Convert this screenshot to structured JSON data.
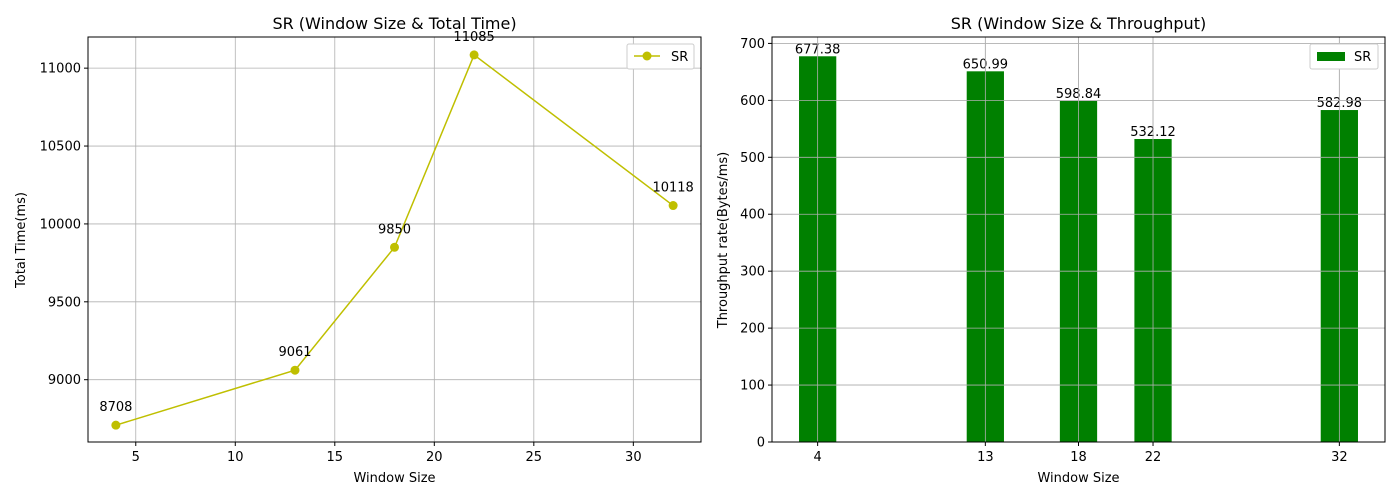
{
  "chart_data": [
    {
      "type": "line",
      "title": "SR (Window Size & Total Time)",
      "xlabel": "Window Size",
      "ylabel": "Total Time(ms)",
      "xlim": [
        2.6,
        33.4
      ],
      "ylim": [
        8600,
        11200
      ],
      "xticks": [
        5,
        10,
        15,
        20,
        25,
        30
      ],
      "yticks": [
        9000,
        9500,
        10000,
        10500,
        11000
      ],
      "grid": true,
      "legend_position": "top-right",
      "series": [
        {
          "name": "SR",
          "color": "#bfbf00",
          "marker": "circle",
          "x": [
            4,
            13,
            18,
            22,
            32
          ],
          "y": [
            8708,
            9061,
            9850,
            11085,
            10118
          ],
          "data_labels": [
            "8708",
            "9061",
            "9850",
            "11085",
            "10118"
          ]
        }
      ]
    },
    {
      "type": "bar",
      "title": "SR (Window Size & Throughput)",
      "xlabel": "Window Size",
      "ylabel": "Throughput rate(Bytes/ms)",
      "xlim": [
        1.55,
        34.45
      ],
      "ylim": [
        0,
        711.25
      ],
      "xticks": [
        4,
        13,
        18,
        22,
        32
      ],
      "yticks": [
        0,
        100,
        200,
        300,
        400,
        500,
        600,
        700
      ],
      "bar_width": 2,
      "grid": true,
      "legend_position": "top-right",
      "series": [
        {
          "name": "SR",
          "color": "#008000",
          "x": [
            4,
            13,
            18,
            22,
            32
          ],
          "values": [
            677.38,
            650.99,
            598.84,
            532.12,
            582.98
          ],
          "data_labels": [
            "677.38",
            "650.99",
            "598.84",
            "532.12",
            "582.98"
          ]
        }
      ]
    }
  ]
}
